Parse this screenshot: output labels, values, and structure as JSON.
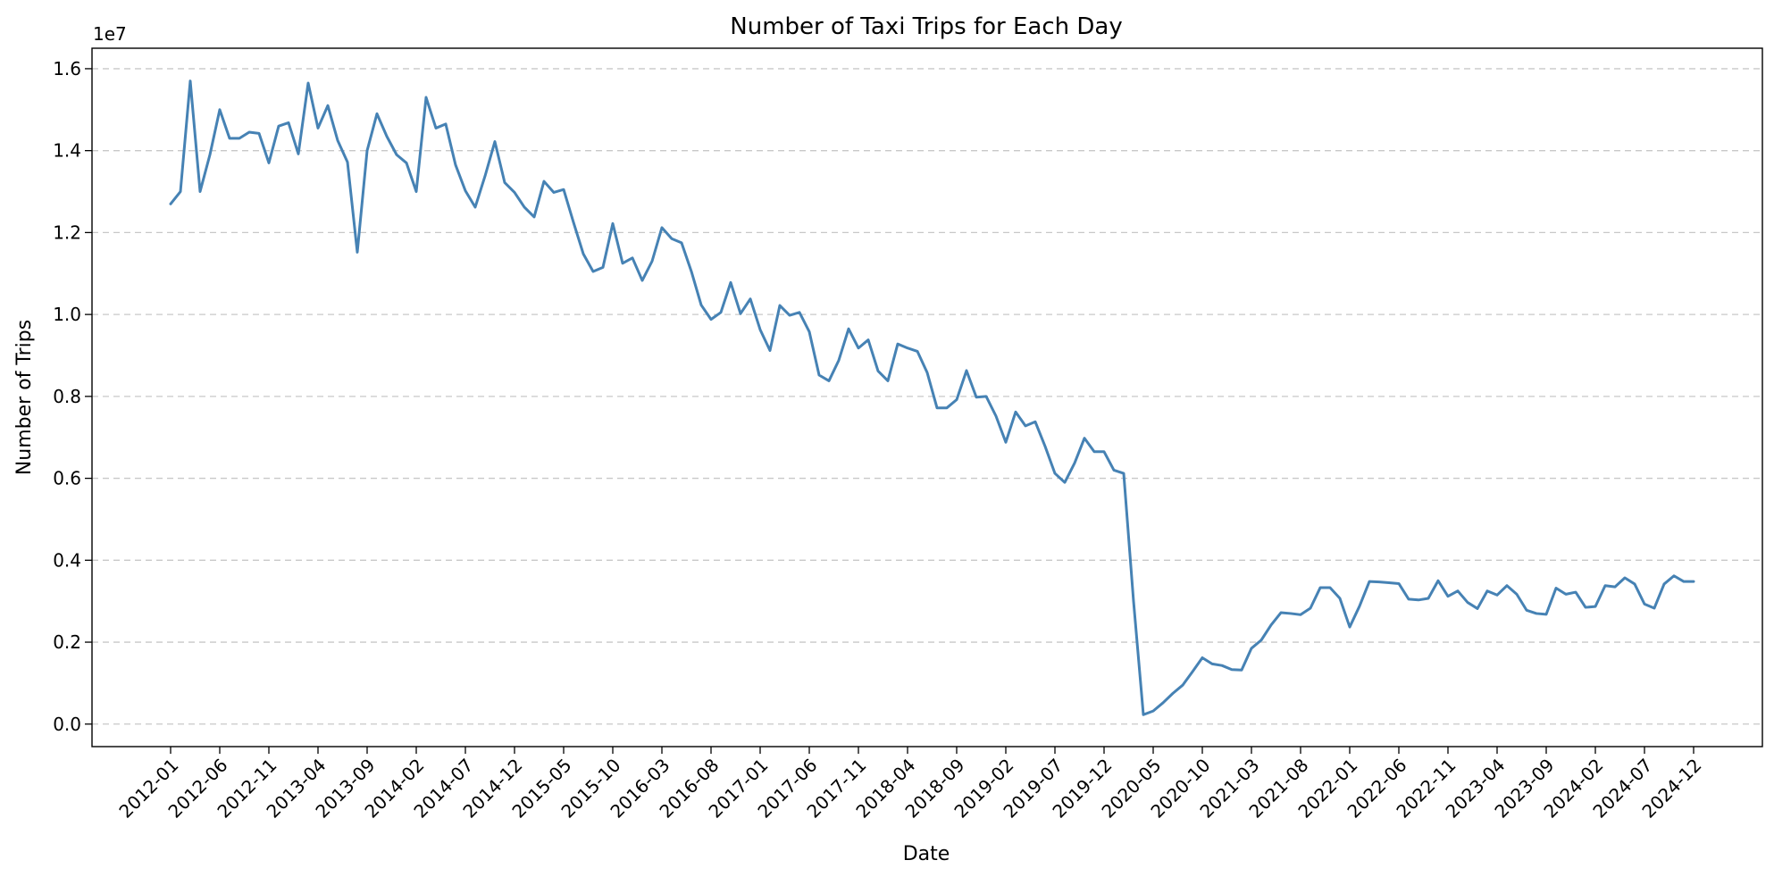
{
  "chart_data": {
    "type": "line",
    "title": "Number of Taxi Trips for Each Day",
    "xlabel": "Date",
    "ylabel": "Number of Trips",
    "y_offset_label": "1e7",
    "y_scale_factor": 10000000,
    "ylim": [
      -0.055,
      1.65
    ],
    "yticks": [
      0.0,
      0.2,
      0.4,
      0.6,
      0.8,
      1.0,
      1.2,
      1.4,
      1.6
    ],
    "ytick_labels": [
      "0.0",
      "0.2",
      "0.4",
      "0.6",
      "0.8",
      "1.0",
      "1.2",
      "1.4",
      "1.6"
    ],
    "xlim": [
      "2011-05",
      "2025-07"
    ],
    "xtick_labels": [
      "2012-01",
      "2012-06",
      "2012-11",
      "2013-04",
      "2013-09",
      "2014-02",
      "2014-07",
      "2014-12",
      "2015-05",
      "2015-10",
      "2016-03",
      "2016-08",
      "2017-01",
      "2017-06",
      "2017-11",
      "2018-04",
      "2018-09",
      "2019-02",
      "2019-07",
      "2019-12",
      "2020-05",
      "2020-10",
      "2021-03",
      "2021-08",
      "2022-01",
      "2022-06",
      "2022-11",
      "2023-04",
      "2023-09",
      "2024-02",
      "2024-07",
      "2024-12"
    ],
    "grid": "y",
    "line_color": "#4682b4",
    "series": [
      {
        "start_month": "2012-01",
        "values": [
          12.7,
          13.0,
          15.7,
          13.0,
          13.9,
          15.0,
          14.3,
          14.3,
          14.45,
          14.42,
          13.7,
          14.6,
          14.68,
          13.92,
          15.65,
          14.55,
          15.1,
          14.25,
          13.72,
          11.52,
          14.0,
          14.9,
          14.35,
          13.9,
          13.7,
          13.0,
          15.3,
          14.55,
          14.65,
          13.65,
          13.02,
          12.62,
          13.38,
          14.22,
          13.22,
          12.98,
          12.62,
          12.38,
          13.25,
          12.98,
          13.05,
          12.25,
          11.48,
          11.05,
          11.15,
          12.22,
          11.25,
          11.38,
          10.83,
          11.3,
          12.12,
          11.85,
          11.75,
          11.05,
          10.23,
          9.88,
          10.05,
          10.78,
          10.02,
          10.38,
          9.63,
          9.12,
          10.22,
          9.98,
          10.05,
          9.58,
          8.52,
          8.38,
          8.88,
          9.65,
          9.18,
          9.38,
          8.62,
          8.38,
          9.28,
          9.18,
          9.1,
          8.58,
          7.72,
          7.72,
          7.92,
          8.63,
          7.98,
          8.0,
          7.52,
          6.88,
          7.62,
          7.28,
          7.38,
          6.78,
          6.12,
          5.9,
          6.37,
          6.98,
          6.65,
          6.65,
          6.2,
          6.12,
          3.0,
          0.23,
          0.32,
          0.52,
          0.75,
          0.95,
          1.28,
          1.62,
          1.47,
          1.43,
          1.33,
          1.32,
          1.85,
          2.05,
          2.42,
          2.72,
          2.7,
          2.67,
          2.83,
          3.33,
          3.33,
          3.07,
          2.37,
          2.88,
          3.48,
          3.47,
          3.45,
          3.43,
          3.05,
          3.03,
          3.07,
          3.5,
          3.12,
          3.25,
          2.97,
          2.82,
          3.25,
          3.15,
          3.38,
          3.17,
          2.78,
          2.7,
          2.68,
          3.32,
          3.17,
          3.22,
          2.85,
          2.87,
          3.38,
          3.35,
          3.57,
          3.42,
          2.93,
          2.83,
          3.42,
          3.62,
          3.48,
          3.48
        ]
      }
    ]
  }
}
